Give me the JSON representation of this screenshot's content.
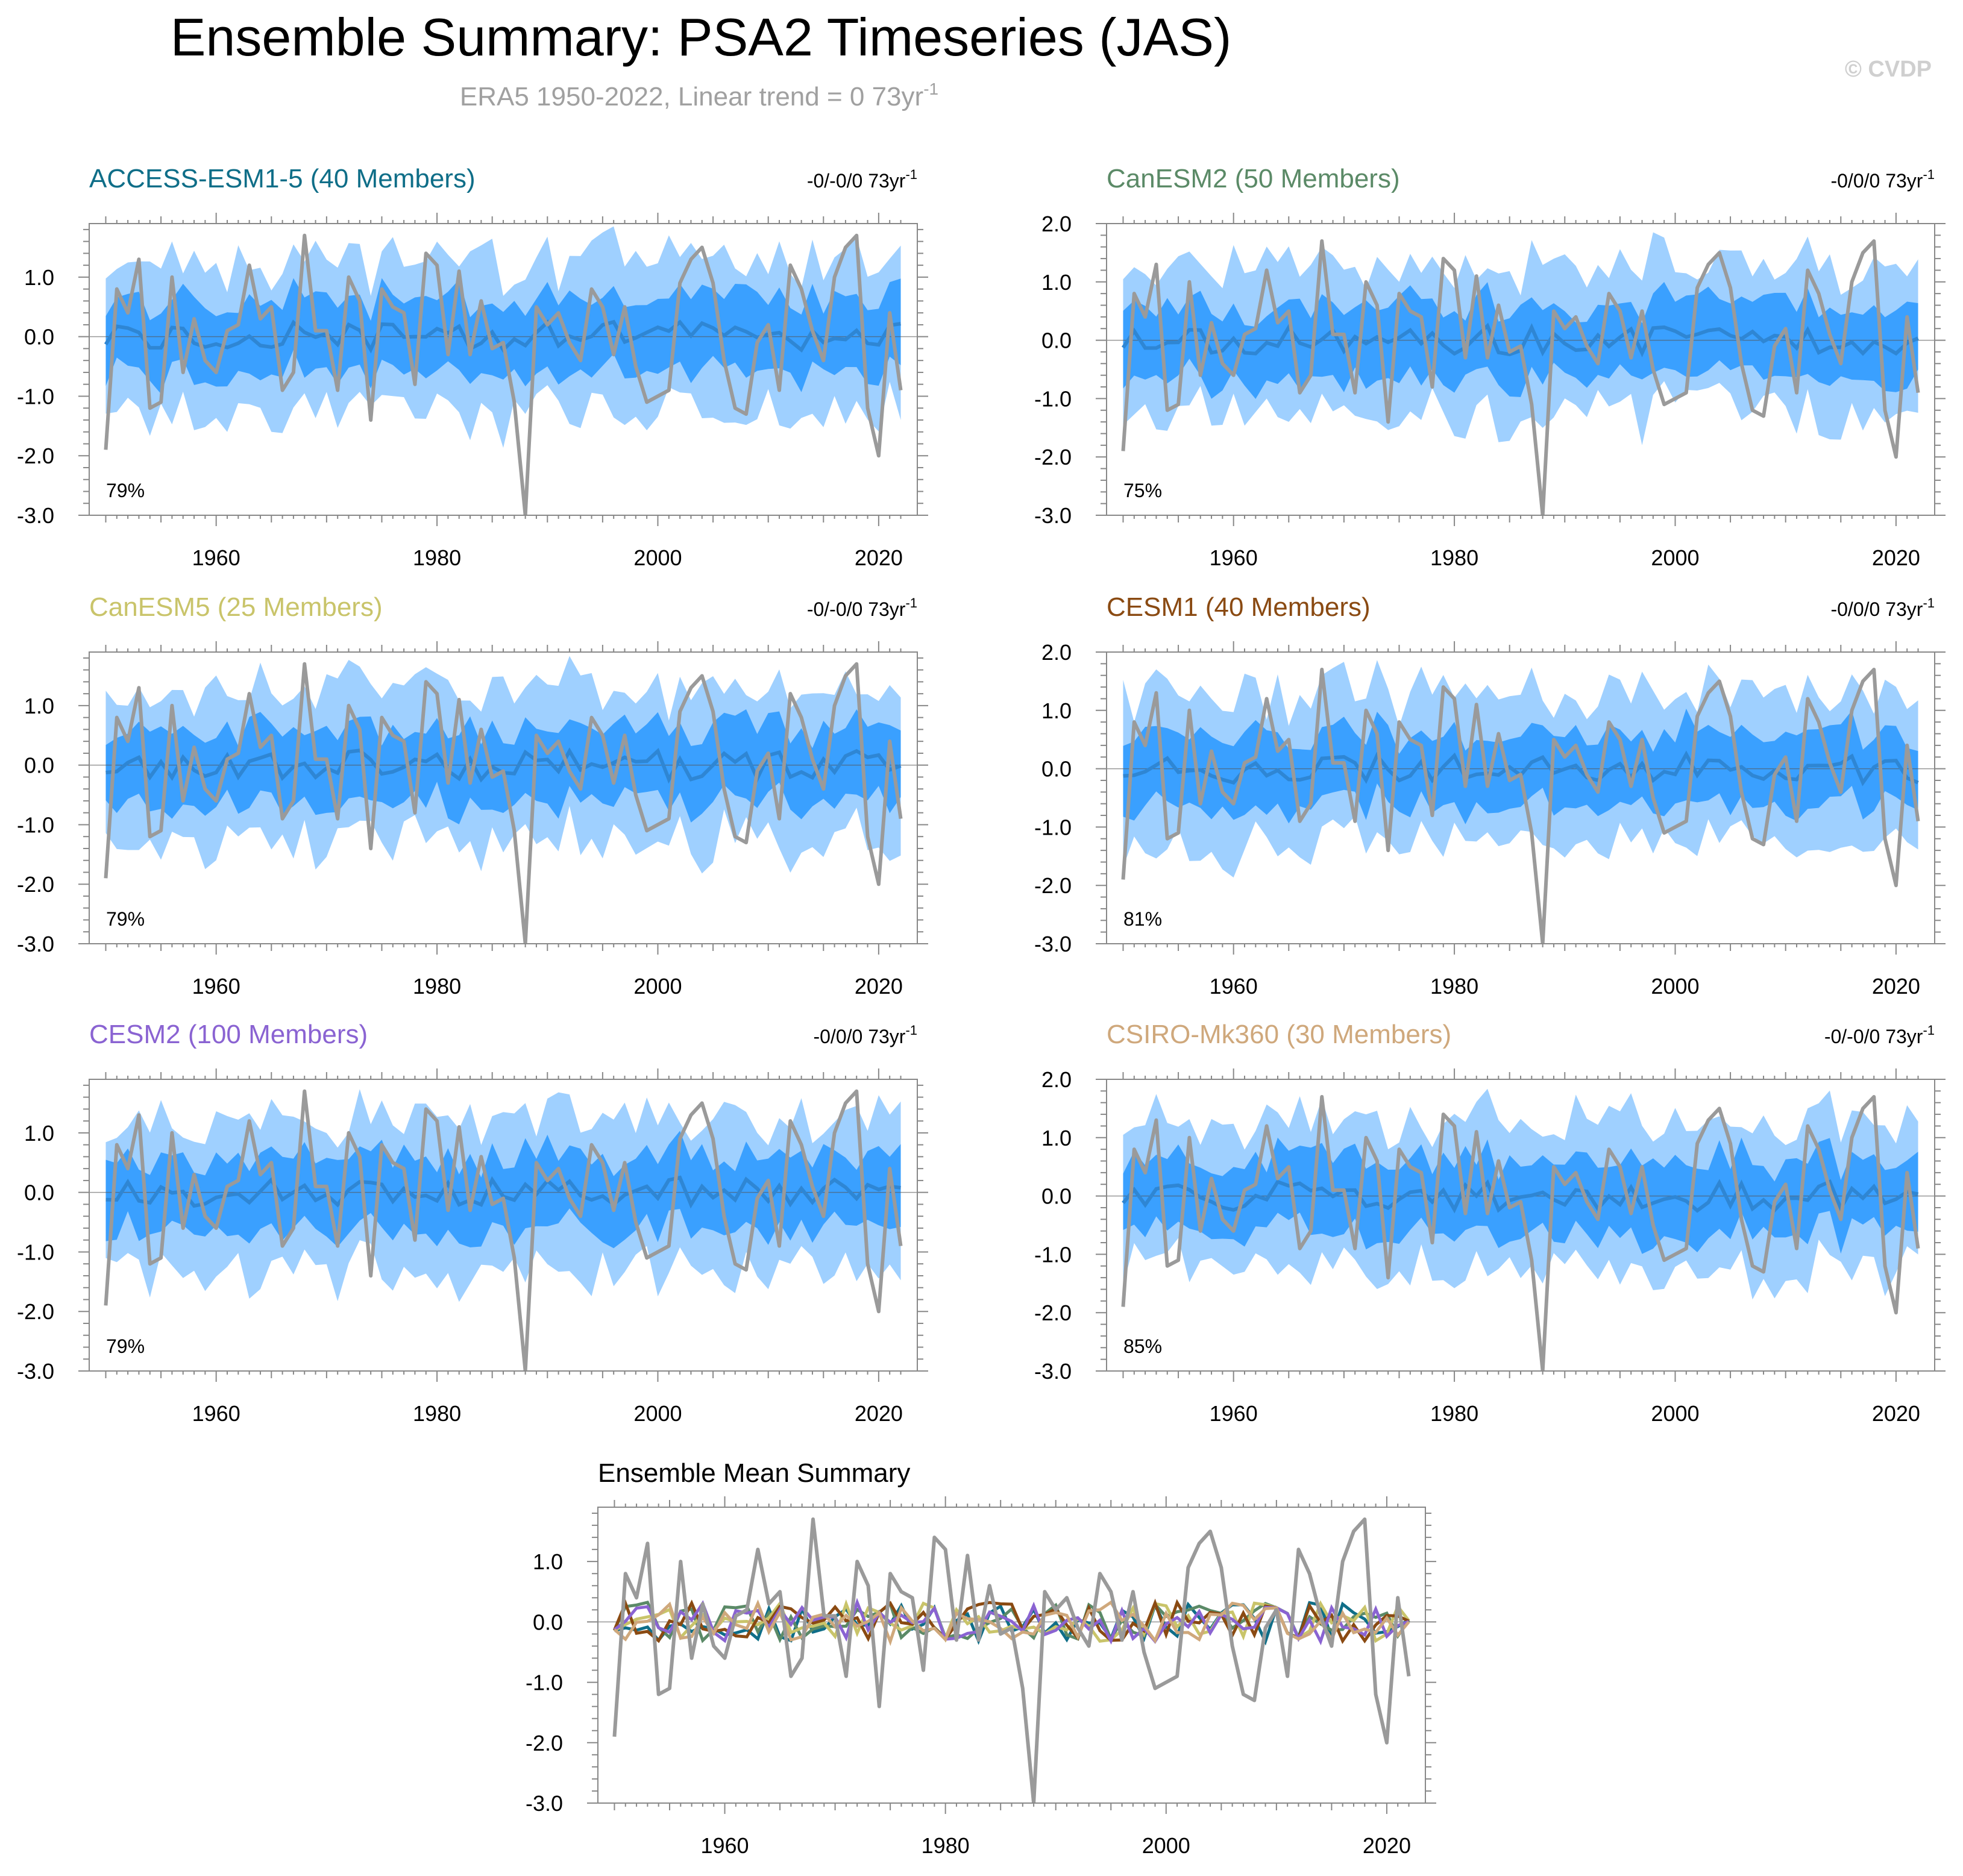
{
  "title": "Ensemble Summary: PSA2 Timeseries (JAS)",
  "subtitle": "ERA5 1950-2022, Linear trend = 0 73yr",
  "subtitle_sup": "-1",
  "copyright": "© CVDP",
  "trend_unit_sup": "-1",
  "colors": {
    "obs": "#9a9a9a",
    "outer_band": "#9fd0ff",
    "inner_band": "#3aa0ff",
    "ensemble_mean": "#2e86d4",
    "zero_line": "#555555",
    "axis": "#888888"
  },
  "chart_data": [
    {
      "type": "line",
      "title": "ACCESS-ESM1-5 (40 Members)",
      "title_color": "#0f6e88",
      "trend_text": "-0/-0/0 73yr",
      "percent_label": "79%",
      "xlim": [
        1948.5,
        2023.5
      ],
      "ylim": [
        -3.0,
        1.9
      ],
      "yticks": [
        -3.0,
        -2.0,
        -1.0,
        0.0,
        1.0
      ],
      "xticks": [
        1960,
        1980,
        2000,
        2020
      ],
      "seed": 11
    },
    {
      "type": "line",
      "title": "CanESM2 (50 Members)",
      "title_color": "#5b8a67",
      "trend_text": "-0/0/0 73yr",
      "percent_label": "75%",
      "xlim": [
        1948.5,
        2023.5
      ],
      "ylim": [
        -3.0,
        2.0
      ],
      "yticks": [
        -3.0,
        -2.0,
        -1.0,
        0.0,
        1.0,
        2.0
      ],
      "xticks": [
        1960,
        1980,
        2000,
        2020
      ],
      "seed": 23
    },
    {
      "type": "line",
      "title": "CanESM5 (25 Members)",
      "title_color": "#c9c46a",
      "trend_text": "-0/-0/0 73yr",
      "percent_label": "79%",
      "xlim": [
        1948.5,
        2023.5
      ],
      "ylim": [
        -3.0,
        1.9
      ],
      "yticks": [
        -3.0,
        -2.0,
        -1.0,
        0.0,
        1.0
      ],
      "xticks": [
        1960,
        1980,
        2000,
        2020
      ],
      "seed": 37
    },
    {
      "type": "line",
      "title": "CESM1 (40 Members)",
      "title_color": "#8a4a12",
      "trend_text": "-0/0/0 73yr",
      "percent_label": "81%",
      "xlim": [
        1948.5,
        2023.5
      ],
      "ylim": [
        -3.0,
        2.0
      ],
      "yticks": [
        -3.0,
        -2.0,
        -1.0,
        0.0,
        1.0,
        2.0
      ],
      "xticks": [
        1960,
        1980,
        2000,
        2020
      ],
      "seed": 41
    },
    {
      "type": "line",
      "title": "CESM2 (100 Members)",
      "title_color": "#8a63d2",
      "trend_text": "-0/0/0 73yr",
      "percent_label": "79%",
      "xlim": [
        1948.5,
        2023.5
      ],
      "ylim": [
        -3.0,
        1.9
      ],
      "yticks": [
        -3.0,
        -2.0,
        -1.0,
        0.0,
        1.0
      ],
      "xticks": [
        1960,
        1980,
        2000,
        2020
      ],
      "seed": 53
    },
    {
      "type": "line",
      "title": "CSIRO-Mk360 (30 Members)",
      "title_color": "#cfa87c",
      "trend_text": "-0/-0/0 73yr",
      "percent_label": "85%",
      "xlim": [
        1948.5,
        2023.5
      ],
      "ylim": [
        -3.0,
        2.0
      ],
      "yticks": [
        -3.0,
        -2.0,
        -1.0,
        0.0,
        1.0,
        2.0
      ],
      "xticks": [
        1960,
        1980,
        2000,
        2020
      ],
      "seed": 67
    },
    {
      "type": "line",
      "title": "Ensemble Mean Summary",
      "title_color": "#000000",
      "xlim": [
        1948.5,
        2023.5
      ],
      "ylim": [
        -3.0,
        1.9
      ],
      "yticks": [
        -3.0,
        -2.0,
        -1.0,
        0.0,
        1.0
      ],
      "xticks": [
        1960,
        1980,
        2000,
        2020
      ],
      "series_colors": [
        "#0f6e88",
        "#5b8a67",
        "#c9c46a",
        "#8a4a12",
        "#8a63d2",
        "#cfa87c"
      ]
    }
  ],
  "obs_series": {
    "name": "ERA5",
    "years_start": 1950,
    "values": [
      -1.9,
      0.8,
      0.4,
      1.3,
      -1.2,
      -1.1,
      1.0,
      -0.6,
      0.3,
      -0.4,
      -0.6,
      0.1,
      0.2,
      1.2,
      0.3,
      0.5,
      -0.9,
      -0.6,
      1.7,
      0.1,
      0.1,
      -0.9,
      1.0,
      0.6,
      -1.4,
      0.8,
      0.5,
      0.4,
      -0.8,
      1.4,
      1.2,
      -0.3,
      1.1,
      -0.3,
      0.6,
      -0.2,
      -0.1,
      -1.1,
      -3.0,
      0.5,
      0.2,
      0.4,
      -0.1,
      -0.4,
      0.8,
      0.5,
      -0.3,
      0.5,
      -0.5,
      -1.1,
      -1.0,
      -0.9,
      0.9,
      1.3,
      1.5,
      0.9,
      -0.4,
      -1.2,
      -1.3,
      -0.1,
      0.2,
      -0.9,
      1.2,
      0.8,
      0.1,
      -0.4,
      1.0,
      1.5,
      1.7,
      -1.2,
      -2.0,
      0.4,
      -0.9
    ]
  }
}
